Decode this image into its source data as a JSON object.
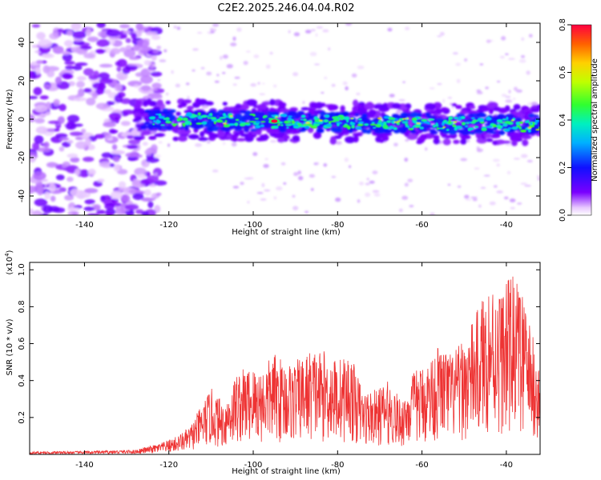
{
  "title": "C2E2.2025.246.04.04.R02",
  "colors": {
    "trace": "#ee3333",
    "axis": "#000000"
  },
  "chart_data": [
    {
      "type": "heatmap",
      "name": "spectrogram",
      "xlabel": "Height of straight line (km)",
      "ylabel": "Frequency (Hz)",
      "xlim": [
        -153,
        -32
      ],
      "ylim": [
        -50,
        50
      ],
      "xticks": [
        -140,
        -120,
        -100,
        -80,
        -60,
        -40
      ],
      "yticks": [
        -40,
        -20,
        0,
        20,
        40
      ],
      "colorbar": {
        "label": "Normalized spectral amplitude",
        "range": [
          0,
          0.8
        ],
        "ticks": [
          "0.0",
          "0.2",
          "0.4",
          "0.6",
          "0.8"
        ],
        "colormap": "rainbow (white-violet-blue-cyan-green-yellow-red)"
      },
      "features": {
        "noise_region_x": [
          -153,
          -128
        ],
        "band_x": [
          -128,
          -32
        ],
        "band_center_start": 0,
        "band_center_end": -3,
        "band_halfwidth_hz": 6,
        "peak": {
          "x": -95,
          "y": -1,
          "amplitude": 0.8
        }
      }
    },
    {
      "type": "line",
      "name": "snr",
      "xlabel": "Height of straight line (km)",
      "ylabel": "SNR (10 * v/v)",
      "multiplier": "(x10",
      "multiplier_exp": "4",
      "multiplier_close": ")",
      "xlim": [
        -153,
        -32
      ],
      "ylim": [
        0,
        1.04
      ],
      "xticks": [
        -140,
        -120,
        -100,
        -80,
        -60,
        -40
      ],
      "yticks": [
        "0.2",
        "0.4",
        "0.6",
        "0.8",
        "1.0"
      ],
      "ytick_values": [
        0.2,
        0.4,
        0.6,
        0.8,
        1.0
      ],
      "envelope": {
        "x": [
          -153,
          -140,
          -128,
          -122,
          -118,
          -115,
          -112,
          -110,
          -107,
          -104,
          -101,
          -98,
          -95,
          -92,
          -89,
          -86,
          -83,
          -80,
          -77,
          -74,
          -71,
          -68,
          -65,
          -62,
          -59,
          -56,
          -53,
          -50,
          -47,
          -44,
          -41,
          -38,
          -35,
          -32
        ],
        "y": [
          0.015,
          0.018,
          0.025,
          0.06,
          0.1,
          0.15,
          0.28,
          0.36,
          0.28,
          0.45,
          0.48,
          0.47,
          0.55,
          0.5,
          0.52,
          0.58,
          0.56,
          0.52,
          0.55,
          0.35,
          0.35,
          0.4,
          0.3,
          0.45,
          0.5,
          0.6,
          0.55,
          0.62,
          0.78,
          0.95,
          0.9,
          1.0,
          0.78,
          0.45
        ]
      }
    }
  ]
}
